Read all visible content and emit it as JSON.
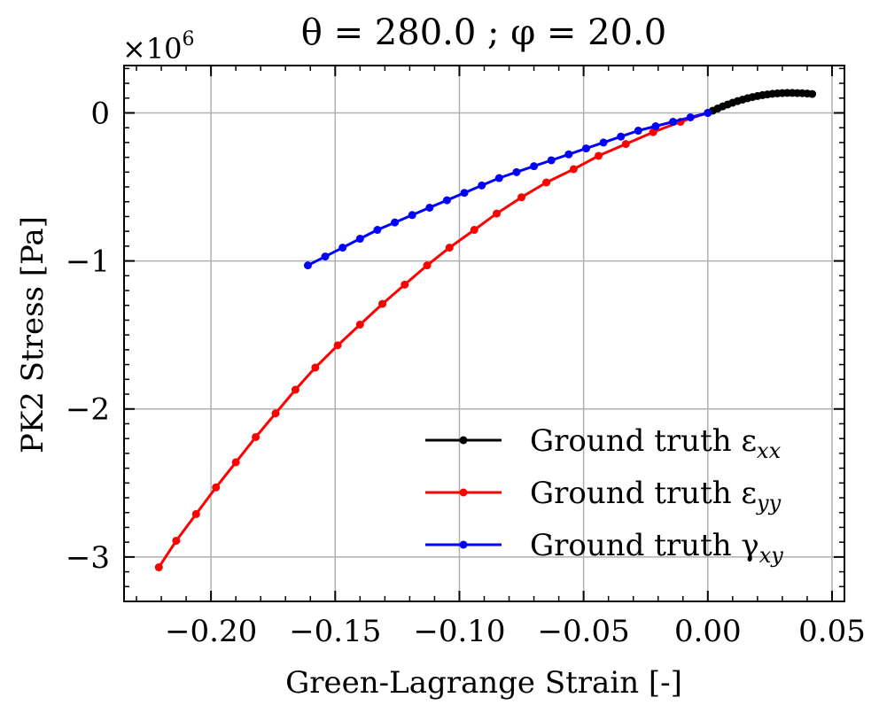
{
  "chart_data": {
    "type": "line",
    "title": "θ = 280.0 ; φ = 20.0",
    "xlabel": "Green-Lagrange Strain [-]",
    "ylabel": "PK2 Stress [Pa]",
    "y_multiplier_label": "×10",
    "y_multiplier_exponent": "6",
    "xlim": [
      -0.235,
      0.055
    ],
    "ylim": [
      -3.3,
      0.32
    ],
    "x_ticks": [
      -0.2,
      -0.15,
      -0.1,
      -0.05,
      0.0,
      0.05
    ],
    "x_tick_labels": [
      "−0.20",
      "−0.15",
      "−0.10",
      "−0.05",
      "0.00",
      "0.05"
    ],
    "y_ticks": [
      0,
      -1,
      -2,
      -3
    ],
    "y_tick_labels": [
      "0",
      "−1",
      "−2",
      "−3"
    ],
    "grid": true,
    "legend_position": "bottom-right",
    "series": [
      {
        "name": "Ground truth ε",
        "subscript": "xx",
        "color": "#000000",
        "x": [
          0.0,
          0.002,
          0.004,
          0.006,
          0.008,
          0.01,
          0.012,
          0.014,
          0.016,
          0.018,
          0.02,
          0.022,
          0.024,
          0.026,
          0.028,
          0.03,
          0.032,
          0.034,
          0.036,
          0.038,
          0.04,
          0.042
        ],
        "y": [
          0.0,
          0.015,
          0.03,
          0.044,
          0.057,
          0.069,
          0.08,
          0.09,
          0.099,
          0.107,
          0.114,
          0.12,
          0.125,
          0.129,
          0.132,
          0.134,
          0.135,
          0.135,
          0.134,
          0.133,
          0.131,
          0.128
        ]
      },
      {
        "name": "Ground truth ε",
        "subscript": "yy",
        "color": "#ff0000",
        "x": [
          0.0,
          -0.011,
          -0.022,
          -0.033,
          -0.044,
          -0.054,
          -0.065,
          -0.075,
          -0.085,
          -0.094,
          -0.104,
          -0.113,
          -0.122,
          -0.131,
          -0.14,
          -0.149,
          -0.158,
          -0.166,
          -0.174,
          -0.182,
          -0.19,
          -0.198,
          -0.206,
          -0.214,
          -0.221
        ],
        "y": [
          0.0,
          -0.06,
          -0.13,
          -0.21,
          -0.29,
          -0.38,
          -0.47,
          -0.57,
          -0.68,
          -0.79,
          -0.91,
          -1.03,
          -1.16,
          -1.29,
          -1.43,
          -1.57,
          -1.72,
          -1.87,
          -2.03,
          -2.19,
          -2.36,
          -2.53,
          -2.71,
          -2.89,
          -3.07
        ]
      },
      {
        "name": "Ground truth γ",
        "subscript": "xy",
        "color": "#0000ff",
        "x": [
          0.0,
          -0.007,
          -0.014,
          -0.021,
          -0.028,
          -0.035,
          -0.042,
          -0.049,
          -0.056,
          -0.063,
          -0.07,
          -0.077,
          -0.084,
          -0.091,
          -0.098,
          -0.105,
          -0.112,
          -0.119,
          -0.126,
          -0.133,
          -0.14,
          -0.147,
          -0.154,
          -0.161
        ],
        "y": [
          0.0,
          -0.03,
          -0.06,
          -0.09,
          -0.12,
          -0.16,
          -0.2,
          -0.24,
          -0.28,
          -0.32,
          -0.36,
          -0.4,
          -0.44,
          -0.49,
          -0.54,
          -0.59,
          -0.64,
          -0.69,
          -0.74,
          -0.79,
          -0.85,
          -0.91,
          -0.97,
          -1.03
        ]
      }
    ]
  }
}
